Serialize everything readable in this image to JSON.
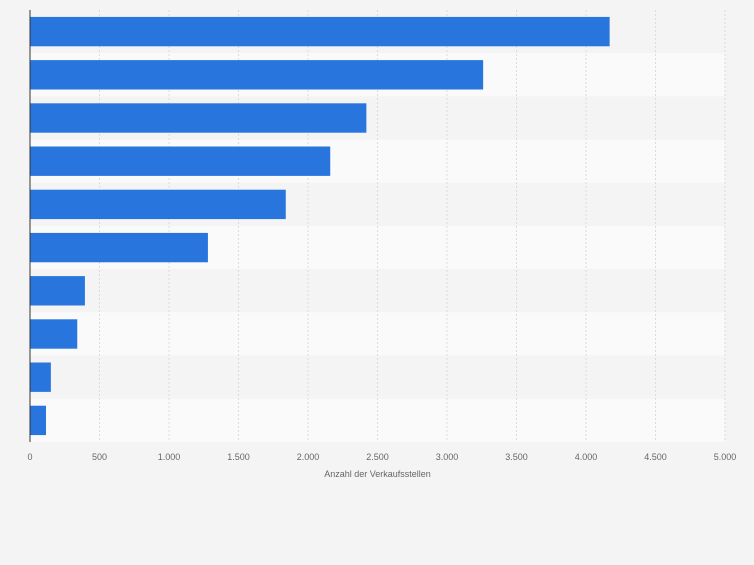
{
  "chart_data": {
    "type": "bar",
    "orientation": "horizontal",
    "title": "",
    "xlabel": "Anzahl der Verkaufsstellen",
    "ylabel": "",
    "categories": [
      "",
      "",
      "",
      "",
      "",
      "",
      "",
      "",
      "",
      ""
    ],
    "values": [
      4170,
      3260,
      2420,
      2160,
      1840,
      1280,
      395,
      340,
      150,
      115
    ],
    "xlim": [
      0,
      5000
    ],
    "ticks": [
      0,
      500,
      1000,
      1500,
      2000,
      2500,
      3000,
      3500,
      4000,
      4500,
      5000
    ],
    "tick_labels": [
      "0",
      "500",
      "1.000",
      "1.500",
      "2.000",
      "2.500",
      "3.000",
      "3.500",
      "4.000",
      "4.500",
      "5.000"
    ],
    "grid": true,
    "bar_color": "#2775dd",
    "band_colors": [
      "#f4f4f4",
      "#fafafa"
    ],
    "background_color": "#f4f4f4",
    "tick_label_color": "#666666",
    "axis_color": "#333333"
  }
}
